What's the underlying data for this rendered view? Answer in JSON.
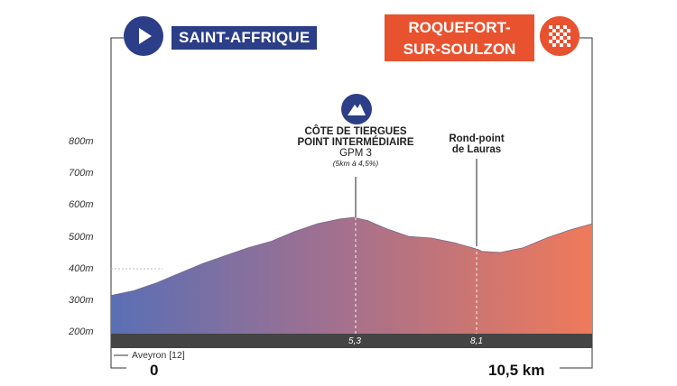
{
  "start": {
    "name": "SAINT-AFFRIQUE",
    "distance": "0"
  },
  "finish": {
    "name_line1": "ROQUEFORT-",
    "name_line2": "SUR-SOULZON",
    "distance": "10,5 km"
  },
  "elevation_labels": [
    "800m",
    "700m",
    "600m",
    "500m",
    "400m",
    "300m",
    "200m"
  ],
  "climb": {
    "name_line1": "CÔTE DE TIERGUES",
    "name_line2": "POINT INTERMÉDIAIRE",
    "category": "GPM 3",
    "details": "(5km à 4,5%)",
    "km": "5,3"
  },
  "waypoint": {
    "name_line1": "Rond-point",
    "name_line2": "de Lauras",
    "km": "8,1"
  },
  "river": "Aveyron [12]",
  "colors": {
    "start_blue": "#2c3e87",
    "finish_red": "#e8522f",
    "band": "#444444"
  },
  "chart_data": {
    "type": "area",
    "x": [
      0,
      0.5,
      1,
      1.5,
      2,
      2.5,
      3,
      3.5,
      4,
      4.5,
      5,
      5.3,
      5.6,
      6,
      6.5,
      7,
      7.5,
      8,
      8.1,
      8.5,
      9,
      9.5,
      10,
      10.5
    ],
    "y": [
      320,
      335,
      360,
      390,
      420,
      445,
      470,
      490,
      520,
      545,
      560,
      565,
      555,
      530,
      505,
      500,
      485,
      465,
      458,
      455,
      470,
      500,
      525,
      545
    ],
    "xunit": "km",
    "yunit": "m",
    "ylim": [
      200,
      800
    ],
    "xlim": [
      0,
      10.5
    ]
  }
}
